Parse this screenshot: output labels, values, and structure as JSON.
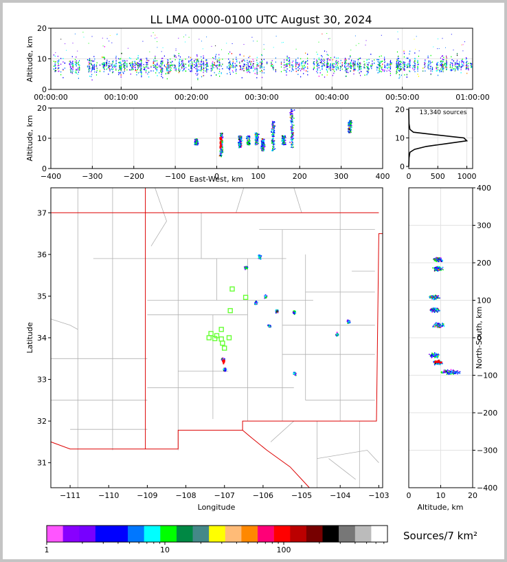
{
  "page": {
    "title": "LL LMA 0000-0100 UTC August 30, 2024"
  },
  "colors": {
    "colorbar": [
      "#ff55ff",
      "#8800ff",
      "#7700ff",
      "#0000ff",
      "#0000ff",
      "#0077ff",
      "#00ffff",
      "#00ff00",
      "#008844",
      "#448888",
      "#ffff00",
      "#ffbb77",
      "#ff8800",
      "#ff0077",
      "#ff0000",
      "#bb0000",
      "#770000",
      "#000000",
      "#777777",
      "#bbbbbb",
      "#ffffff"
    ],
    "state_border": "#dd0000",
    "county_border": "#b0b0b0",
    "station_marker": "#66ff33"
  },
  "chart_data": [
    {
      "id": "time-altitude",
      "type": "scatter",
      "xlabel": "",
      "ylabel": "Altitude, km",
      "xlim": [
        "00:00:00",
        "01:00:00"
      ],
      "ylim": [
        0,
        20
      ],
      "x_ticks": [
        "00:00:00",
        "00:10:00",
        "00:20:00",
        "00:30:00",
        "00:40:00",
        "00:50:00",
        "01:00:00"
      ],
      "y_ticks": [
        "0",
        "10",
        "20"
      ],
      "grid": true,
      "typical_altitude_km": [
        6,
        12
      ]
    },
    {
      "id": "eastwest-altitude",
      "type": "scatter",
      "xlabel": "East-West, km",
      "ylabel": "Altitude, km",
      "xlim": [
        -400,
        400
      ],
      "ylim": [
        0,
        20
      ],
      "x_ticks": [
        "−400",
        "−300",
        "−200",
        "−100",
        "0",
        "100",
        "200",
        "300",
        "400"
      ],
      "y_ticks": [
        "0",
        "10",
        "20"
      ],
      "grid": true,
      "clusters_km": [
        {
          "x": -50,
          "alt": [
            8,
            10
          ]
        },
        {
          "x": 10,
          "alt": [
            4,
            12
          ]
        },
        {
          "x": 55,
          "alt": [
            7,
            11
          ]
        },
        {
          "x": 75,
          "alt": [
            8,
            11
          ]
        },
        {
          "x": 95,
          "alt": [
            8,
            12
          ]
        },
        {
          "x": 110,
          "alt": [
            6,
            10
          ]
        },
        {
          "x": 135,
          "alt": [
            6,
            16
          ]
        },
        {
          "x": 160,
          "alt": [
            8,
            11
          ]
        },
        {
          "x": 180,
          "alt": [
            7,
            20
          ]
        },
        {
          "x": 320,
          "alt": [
            12,
            16
          ]
        }
      ]
    },
    {
      "id": "altitude-histogram",
      "type": "line",
      "annotation": "13,340 sources",
      "xlim": [
        0,
        1100
      ],
      "ylim": [
        0,
        20
      ],
      "x_ticks": [
        "0",
        "500",
        "1000"
      ],
      "y_ticks": [
        "0",
        "10",
        "20"
      ],
      "profile": [
        [
          0,
          0
        ],
        [
          5,
          3
        ],
        [
          20,
          5
        ],
        [
          100,
          6
        ],
        [
          300,
          7
        ],
        [
          650,
          8
        ],
        [
          1000,
          9
        ],
        [
          950,
          10
        ],
        [
          500,
          11
        ],
        [
          80,
          12
        ],
        [
          20,
          13
        ],
        [
          5,
          15
        ],
        [
          2,
          17
        ],
        [
          0,
          20
        ]
      ]
    },
    {
      "id": "plan-view",
      "type": "scatter",
      "xlabel": "Longitude",
      "ylabel": "Latitude",
      "xlim": [
        -111.5,
        -102.9
      ],
      "ylim": [
        30.4,
        37.6
      ],
      "x_ticks": [
        "−111",
        "−110",
        "−109",
        "−108",
        "−107",
        "−106",
        "−105",
        "−104",
        "−103"
      ],
      "y_ticks": [
        "31",
        "32",
        "33",
        "34",
        "35",
        "36",
        "37"
      ],
      "clusters": [
        {
          "lon": -106.1,
          "lat": 35.95
        },
        {
          "lon": -106.45,
          "lat": 35.7
        },
        {
          "lon": -105.95,
          "lat": 35.0
        },
        {
          "lon": -105.2,
          "lat": 34.62
        },
        {
          "lon": -105.65,
          "lat": 34.65
        },
        {
          "lon": -105.85,
          "lat": 34.3
        },
        {
          "lon": -104.1,
          "lat": 34.1
        },
        {
          "lon": -103.8,
          "lat": 34.4
        },
        {
          "lon": -107.05,
          "lat": 33.5
        },
        {
          "lon": -107.0,
          "lat": 33.25
        },
        {
          "lon": -105.2,
          "lat": 33.15
        },
        {
          "lon": -106.2,
          "lat": 34.85
        }
      ],
      "stations": [
        {
          "lon": -106.8,
          "lat": 35.17
        },
        {
          "lon": -106.45,
          "lat": 34.97
        },
        {
          "lon": -106.85,
          "lat": 34.65
        },
        {
          "lon": -107.08,
          "lat": 34.2
        },
        {
          "lon": -107.2,
          "lat": 34.05
        },
        {
          "lon": -107.35,
          "lat": 34.1
        },
        {
          "lon": -107.4,
          "lat": 34.0
        },
        {
          "lon": -107.25,
          "lat": 33.98
        },
        {
          "lon": -107.08,
          "lat": 33.97
        },
        {
          "lon": -106.88,
          "lat": 34.0
        },
        {
          "lon": -107.05,
          "lat": 33.87
        },
        {
          "lon": -107.0,
          "lat": 33.75
        }
      ]
    },
    {
      "id": "altitude-northsouth",
      "type": "scatter",
      "xlabel": "Altitude, km",
      "ylabel": "North-South, km",
      "xlim": [
        0,
        20
      ],
      "ylim": [
        -400,
        400
      ],
      "x_ticks": [
        "0",
        "10",
        "20"
      ],
      "y_ticks": [
        "400",
        "300",
        "200",
        "100",
        "0",
        "−100",
        "−200",
        "−300",
        "−400"
      ],
      "clusters_km": [
        {
          "alt": 9,
          "ns": 210
        },
        {
          "alt": 9,
          "ns": 185
        },
        {
          "alt": 8,
          "ns": 110
        },
        {
          "alt": 8,
          "ns": 75
        },
        {
          "alt": 9,
          "ns": 35
        },
        {
          "alt": 8,
          "ns": -45
        },
        {
          "alt": 9,
          "ns": -65
        },
        {
          "alt": 13,
          "ns": -90
        }
      ]
    }
  ],
  "colorbar": {
    "tick_labels": [
      "1",
      "10",
      "100"
    ],
    "label": "Sources/7 km²"
  }
}
